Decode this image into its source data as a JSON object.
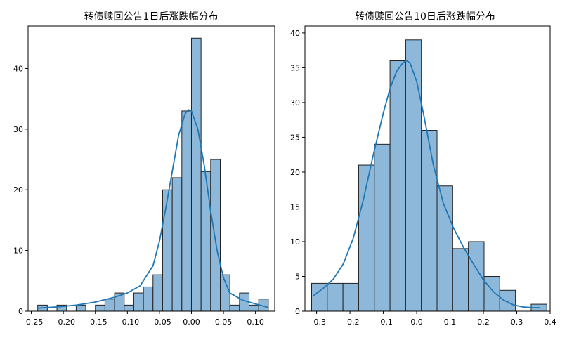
{
  "colors": {
    "bar_fill": "#8db8da",
    "bar_edge": "#222222",
    "kde_line": "#1f77b4"
  },
  "chart_data": [
    {
      "type": "bar",
      "subtype": "histogram_with_kde",
      "title": "转债赎回公告1日后涨跌幅分布",
      "xlabel": "",
      "ylabel": "",
      "xlim": [
        -0.255,
        0.13
      ],
      "ylim": [
        0,
        47
      ],
      "xticks": [
        -0.25,
        -0.2,
        -0.15,
        -0.1,
        -0.05,
        0.0,
        0.05,
        0.1
      ],
      "xtick_labels": [
        "−0.25",
        "−0.20",
        "−0.15",
        "−0.10",
        "−0.05",
        "0.00",
        "0.05",
        "0.10"
      ],
      "yticks": [
        0,
        10,
        20,
        30,
        40
      ],
      "ytick_labels": [
        "0",
        "10",
        "20",
        "30",
        "40"
      ],
      "grid": false,
      "bin_edges": [
        -0.24,
        -0.225,
        -0.21,
        -0.195,
        -0.18,
        -0.165,
        -0.15,
        -0.135,
        -0.12,
        -0.105,
        -0.09,
        -0.075,
        -0.06,
        -0.045,
        -0.03,
        -0.015,
        0.0,
        0.015,
        0.03,
        0.045,
        0.06,
        0.075,
        0.09,
        0.105,
        0.12
      ],
      "values": [
        1,
        0,
        1,
        0,
        1,
        0,
        1,
        2,
        3,
        1,
        3,
        4,
        6,
        20,
        22,
        33,
        45,
        23,
        25,
        6,
        1,
        3,
        1,
        2
      ],
      "kde": {
        "x": [
          -0.24,
          -0.21,
          -0.18,
          -0.15,
          -0.12,
          -0.1,
          -0.08,
          -0.06,
          -0.05,
          -0.04,
          -0.03,
          -0.02,
          -0.01,
          -0.005,
          0.0,
          0.01,
          0.02,
          0.03,
          0.04,
          0.05,
          0.06,
          0.08,
          0.1,
          0.12
        ],
        "y": [
          0.5,
          0.7,
          1.0,
          1.5,
          2.3,
          3.0,
          4.2,
          7.5,
          11.5,
          17.0,
          23.0,
          29.0,
          32.5,
          33.2,
          33.0,
          30.0,
          24.0,
          16.5,
          10.0,
          5.5,
          3.0,
          1.8,
          1.2,
          0.6
        ]
      }
    },
    {
      "type": "bar",
      "subtype": "histogram_with_kde",
      "title": "转债赎回公告10日后涨跌幅分布",
      "xlabel": "",
      "ylabel": "",
      "xlim": [
        -0.335,
        0.4
      ],
      "ylim": [
        0,
        41
      ],
      "xticks": [
        -0.3,
        -0.2,
        -0.1,
        0.0,
        0.1,
        0.2,
        0.3,
        0.4
      ],
      "xtick_labels": [
        "−0.3",
        "−0.2",
        "−0.1",
        "0.0",
        "0.1",
        "0.2",
        "0.3",
        "0.4"
      ],
      "yticks": [
        0,
        5,
        10,
        15,
        20,
        25,
        30,
        35,
        40
      ],
      "ytick_labels": [
        "0",
        "5",
        "10",
        "15",
        "20",
        "25",
        "30",
        "35",
        "40"
      ],
      "grid": false,
      "bin_edges": [
        -0.315,
        -0.268,
        -0.221,
        -0.174,
        -0.127,
        -0.08,
        -0.033,
        0.014,
        0.061,
        0.108,
        0.155,
        0.202,
        0.249,
        0.296,
        0.343,
        0.39
      ],
      "values": [
        4,
        4,
        4,
        21,
        24,
        36,
        39,
        26,
        18,
        9,
        10,
        5,
        3,
        0,
        1
      ],
      "kde": {
        "x": [
          -0.31,
          -0.28,
          -0.25,
          -0.22,
          -0.19,
          -0.16,
          -0.13,
          -0.1,
          -0.08,
          -0.06,
          -0.04,
          -0.03,
          -0.02,
          0.0,
          0.02,
          0.05,
          0.08,
          0.11,
          0.14,
          0.17,
          0.2,
          0.23,
          0.26,
          0.29,
          0.32,
          0.35,
          0.37
        ],
        "y": [
          2.2,
          3.3,
          4.6,
          6.8,
          10.5,
          16.0,
          22.5,
          28.5,
          32.0,
          34.5,
          35.8,
          36.0,
          35.7,
          33.0,
          28.5,
          21.0,
          15.5,
          12.0,
          9.2,
          6.8,
          4.5,
          2.8,
          1.6,
          0.9,
          0.6,
          0.5,
          0.5
        ]
      }
    }
  ]
}
